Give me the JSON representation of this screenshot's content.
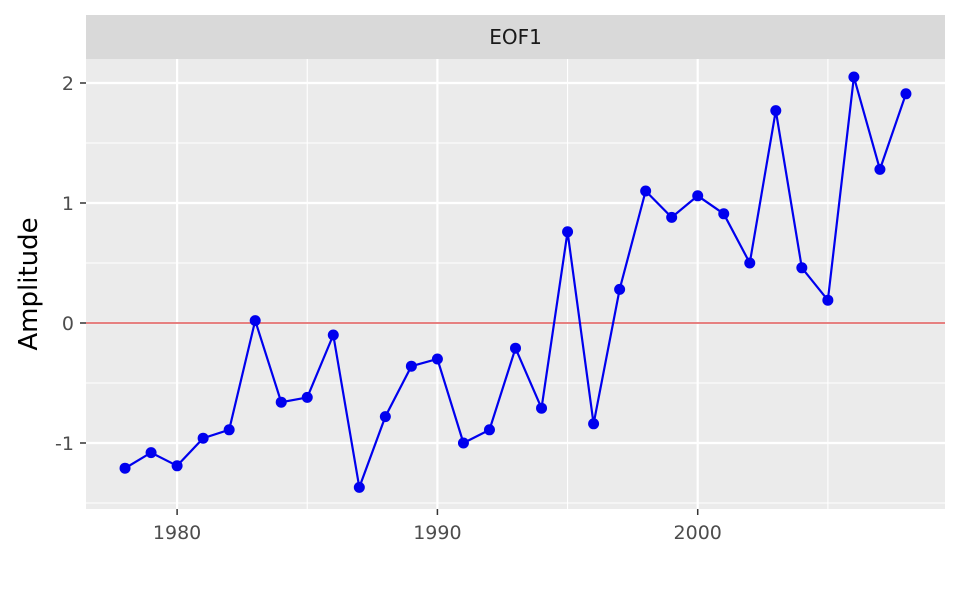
{
  "chart_data": {
    "type": "line",
    "facet_title": "EOF1",
    "xlabel": "",
    "ylabel": "Amplitude",
    "xlim": [
      1976.5,
      2009.5
    ],
    "ylim": [
      -1.55,
      2.2
    ],
    "x_ticks": [
      1980,
      1990,
      2000
    ],
    "x_tick_labels": [
      "1980",
      "1990",
      "2000"
    ],
    "y_ticks": [
      -1,
      0,
      1,
      2
    ],
    "y_tick_labels": [
      "-1",
      "0",
      "1",
      "2"
    ],
    "grid": true,
    "reference_line": {
      "y": 0,
      "color": "#cc0000"
    },
    "colors": {
      "panel_background": "#ebebeb",
      "strip_background": "#d9d9d9",
      "grid": "#ffffff",
      "series": "#0000ee"
    },
    "series": [
      {
        "x": [
          1978,
          1979,
          1980,
          1981,
          1982,
          1983,
          1984,
          1985,
          1986,
          1987,
          1988,
          1989,
          1990,
          1991,
          1992,
          1993,
          1994,
          1995,
          1996,
          1997,
          1998,
          1999,
          2000,
          2001,
          2002,
          2003,
          2004,
          2005,
          2006,
          2007,
          2008
        ],
        "values": [
          -1.21,
          -1.08,
          -1.19,
          -0.96,
          -0.89,
          0.02,
          -0.66,
          -0.62,
          -0.1,
          -1.37,
          -0.78,
          -0.36,
          -0.3,
          -1.0,
          -0.89,
          -0.21,
          -0.71,
          0.76,
          -0.84,
          0.28,
          1.1,
          0.88,
          1.06,
          0.91,
          0.5,
          1.77,
          0.46,
          0.19,
          2.05,
          1.28,
          1.91
        ]
      }
    ]
  }
}
